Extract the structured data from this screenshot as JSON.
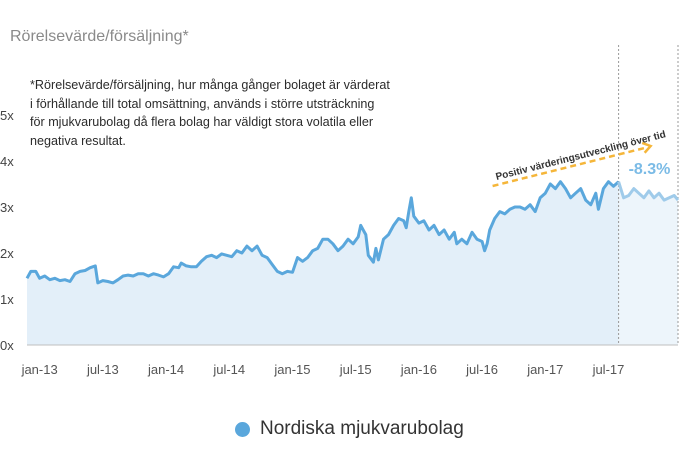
{
  "title": "Rörelsevärde/försäljning*",
  "footnote": "*Rörelsevärde/försäljning, hur många gånger bolaget är värderat i förhållande till total omsättning, används i större utsträckning för mjukvarubolag då flera bolag har väldigt stora volatila eller negativa resultat.",
  "legend": {
    "label": "Nordiska mjukvarubolag"
  },
  "colors": {
    "line": "#5aa7dc",
    "line_light": "#9fcbea",
    "fill": "#e3eff9",
    "fill_light": "#edf5fb",
    "arrow": "#f5b63a",
    "pct": "#7bbbe6"
  },
  "annotation": {
    "text": "Positiv värderingsutveckling över tid",
    "start": "2016-08",
    "end": "2017-11"
  },
  "change": {
    "label": "-8.3%"
  },
  "chart_data": {
    "type": "area",
    "title": "Rörelsevärde/försäljning*",
    "xlabel": "",
    "ylabel": "",
    "yticks": [
      "0x",
      "1x",
      "2x",
      "3x",
      "4x",
      "5x"
    ],
    "ylim": [
      0,
      5
    ],
    "xticks": [
      {
        "label": "jan-13",
        "x": 2013.0
      },
      {
        "label": "jul-13",
        "x": 2013.5
      },
      {
        "label": "jan-14",
        "x": 2014.0
      },
      {
        "label": "jul-14",
        "x": 2014.5
      },
      {
        "label": "jan-15",
        "x": 2015.0
      },
      {
        "label": "jul-15",
        "x": 2015.5
      },
      {
        "label": "jan-16",
        "x": 2016.0
      },
      {
        "label": "jul-16",
        "x": 2016.5
      },
      {
        "label": "jan-17",
        "x": 2017.0
      },
      {
        "label": "jul-17",
        "x": 2017.5
      }
    ],
    "xlim": [
      2012.9,
      2018.05
    ],
    "highlight_start": 2017.58,
    "grid": false,
    "legend_position": "bottom",
    "series": [
      {
        "name": "Nordiska mjukvarubolag",
        "points": [
          [
            2012.9,
            1.45
          ],
          [
            2012.93,
            1.6
          ],
          [
            2012.97,
            1.6
          ],
          [
            2013.0,
            1.45
          ],
          [
            2013.04,
            1.5
          ],
          [
            2013.08,
            1.42
          ],
          [
            2013.12,
            1.45
          ],
          [
            2013.16,
            1.4
          ],
          [
            2013.2,
            1.42
          ],
          [
            2013.24,
            1.38
          ],
          [
            2013.28,
            1.55
          ],
          [
            2013.32,
            1.6
          ],
          [
            2013.36,
            1.62
          ],
          [
            2013.4,
            1.68
          ],
          [
            2013.44,
            1.72
          ],
          [
            2013.46,
            1.35
          ],
          [
            2013.5,
            1.4
          ],
          [
            2013.54,
            1.38
          ],
          [
            2013.58,
            1.35
          ],
          [
            2013.62,
            1.42
          ],
          [
            2013.66,
            1.5
          ],
          [
            2013.7,
            1.52
          ],
          [
            2013.74,
            1.5
          ],
          [
            2013.78,
            1.55
          ],
          [
            2013.82,
            1.55
          ],
          [
            2013.86,
            1.5
          ],
          [
            2013.9,
            1.55
          ],
          [
            2013.94,
            1.52
          ],
          [
            2013.98,
            1.48
          ],
          [
            2014.02,
            1.55
          ],
          [
            2014.06,
            1.7
          ],
          [
            2014.1,
            1.68
          ],
          [
            2014.12,
            1.78
          ],
          [
            2014.16,
            1.72
          ],
          [
            2014.2,
            1.7
          ],
          [
            2014.24,
            1.7
          ],
          [
            2014.28,
            1.82
          ],
          [
            2014.32,
            1.92
          ],
          [
            2014.36,
            1.95
          ],
          [
            2014.4,
            1.9
          ],
          [
            2014.44,
            1.98
          ],
          [
            2014.48,
            1.95
          ],
          [
            2014.52,
            1.92
          ],
          [
            2014.56,
            2.05
          ],
          [
            2014.6,
            2.0
          ],
          [
            2014.64,
            2.15
          ],
          [
            2014.68,
            2.05
          ],
          [
            2014.72,
            2.15
          ],
          [
            2014.76,
            1.95
          ],
          [
            2014.8,
            1.9
          ],
          [
            2014.84,
            1.75
          ],
          [
            2014.88,
            1.6
          ],
          [
            2014.92,
            1.55
          ],
          [
            2014.96,
            1.6
          ],
          [
            2015.0,
            1.58
          ],
          [
            2015.04,
            1.9
          ],
          [
            2015.08,
            1.82
          ],
          [
            2015.12,
            1.9
          ],
          [
            2015.16,
            2.05
          ],
          [
            2015.2,
            2.1
          ],
          [
            2015.24,
            2.3
          ],
          [
            2015.28,
            2.3
          ],
          [
            2015.32,
            2.2
          ],
          [
            2015.36,
            2.05
          ],
          [
            2015.4,
            2.15
          ],
          [
            2015.44,
            2.3
          ],
          [
            2015.48,
            2.2
          ],
          [
            2015.52,
            2.35
          ],
          [
            2015.54,
            2.6
          ],
          [
            2015.56,
            2.5
          ],
          [
            2015.58,
            2.4
          ],
          [
            2015.6,
            1.95
          ],
          [
            2015.64,
            1.8
          ],
          [
            2015.66,
            2.1
          ],
          [
            2015.68,
            1.85
          ],
          [
            2015.72,
            2.3
          ],
          [
            2015.76,
            2.4
          ],
          [
            2015.8,
            2.6
          ],
          [
            2015.84,
            2.75
          ],
          [
            2015.88,
            2.7
          ],
          [
            2015.9,
            2.55
          ],
          [
            2015.92,
            2.9
          ],
          [
            2015.94,
            3.2
          ],
          [
            2015.96,
            2.8
          ],
          [
            2016.0,
            2.65
          ],
          [
            2016.04,
            2.7
          ],
          [
            2016.08,
            2.5
          ],
          [
            2016.12,
            2.6
          ],
          [
            2016.16,
            2.4
          ],
          [
            2016.2,
            2.5
          ],
          [
            2016.24,
            2.3
          ],
          [
            2016.28,
            2.45
          ],
          [
            2016.3,
            2.2
          ],
          [
            2016.34,
            2.3
          ],
          [
            2016.38,
            2.2
          ],
          [
            2016.42,
            2.45
          ],
          [
            2016.46,
            2.3
          ],
          [
            2016.5,
            2.25
          ],
          [
            2016.52,
            2.05
          ],
          [
            2016.54,
            2.2
          ],
          [
            2016.56,
            2.5
          ],
          [
            2016.6,
            2.75
          ],
          [
            2016.64,
            2.9
          ],
          [
            2016.68,
            2.85
          ],
          [
            2016.72,
            2.95
          ],
          [
            2016.76,
            3.0
          ],
          [
            2016.8,
            3.0
          ],
          [
            2016.84,
            2.95
          ],
          [
            2016.88,
            3.05
          ],
          [
            2016.92,
            2.9
          ],
          [
            2016.96,
            3.2
          ],
          [
            2017.0,
            3.3
          ],
          [
            2017.04,
            3.5
          ],
          [
            2017.08,
            3.4
          ],
          [
            2017.12,
            3.55
          ],
          [
            2017.16,
            3.4
          ],
          [
            2017.2,
            3.2
          ],
          [
            2017.24,
            3.3
          ],
          [
            2017.28,
            3.4
          ],
          [
            2017.32,
            3.15
          ],
          [
            2017.36,
            3.05
          ],
          [
            2017.4,
            3.3
          ],
          [
            2017.42,
            2.95
          ],
          [
            2017.46,
            3.4
          ],
          [
            2017.5,
            3.55
          ],
          [
            2017.54,
            3.45
          ],
          [
            2017.58,
            3.55
          ],
          [
            2017.62,
            3.2
          ],
          [
            2017.66,
            3.25
          ],
          [
            2017.7,
            3.4
          ],
          [
            2017.74,
            3.3
          ],
          [
            2017.78,
            3.2
          ],
          [
            2017.82,
            3.35
          ],
          [
            2017.86,
            3.2
          ],
          [
            2017.9,
            3.3
          ],
          [
            2017.94,
            3.15
          ],
          [
            2017.98,
            3.2
          ],
          [
            2018.02,
            3.25
          ],
          [
            2018.05,
            3.15
          ]
        ]
      }
    ]
  }
}
